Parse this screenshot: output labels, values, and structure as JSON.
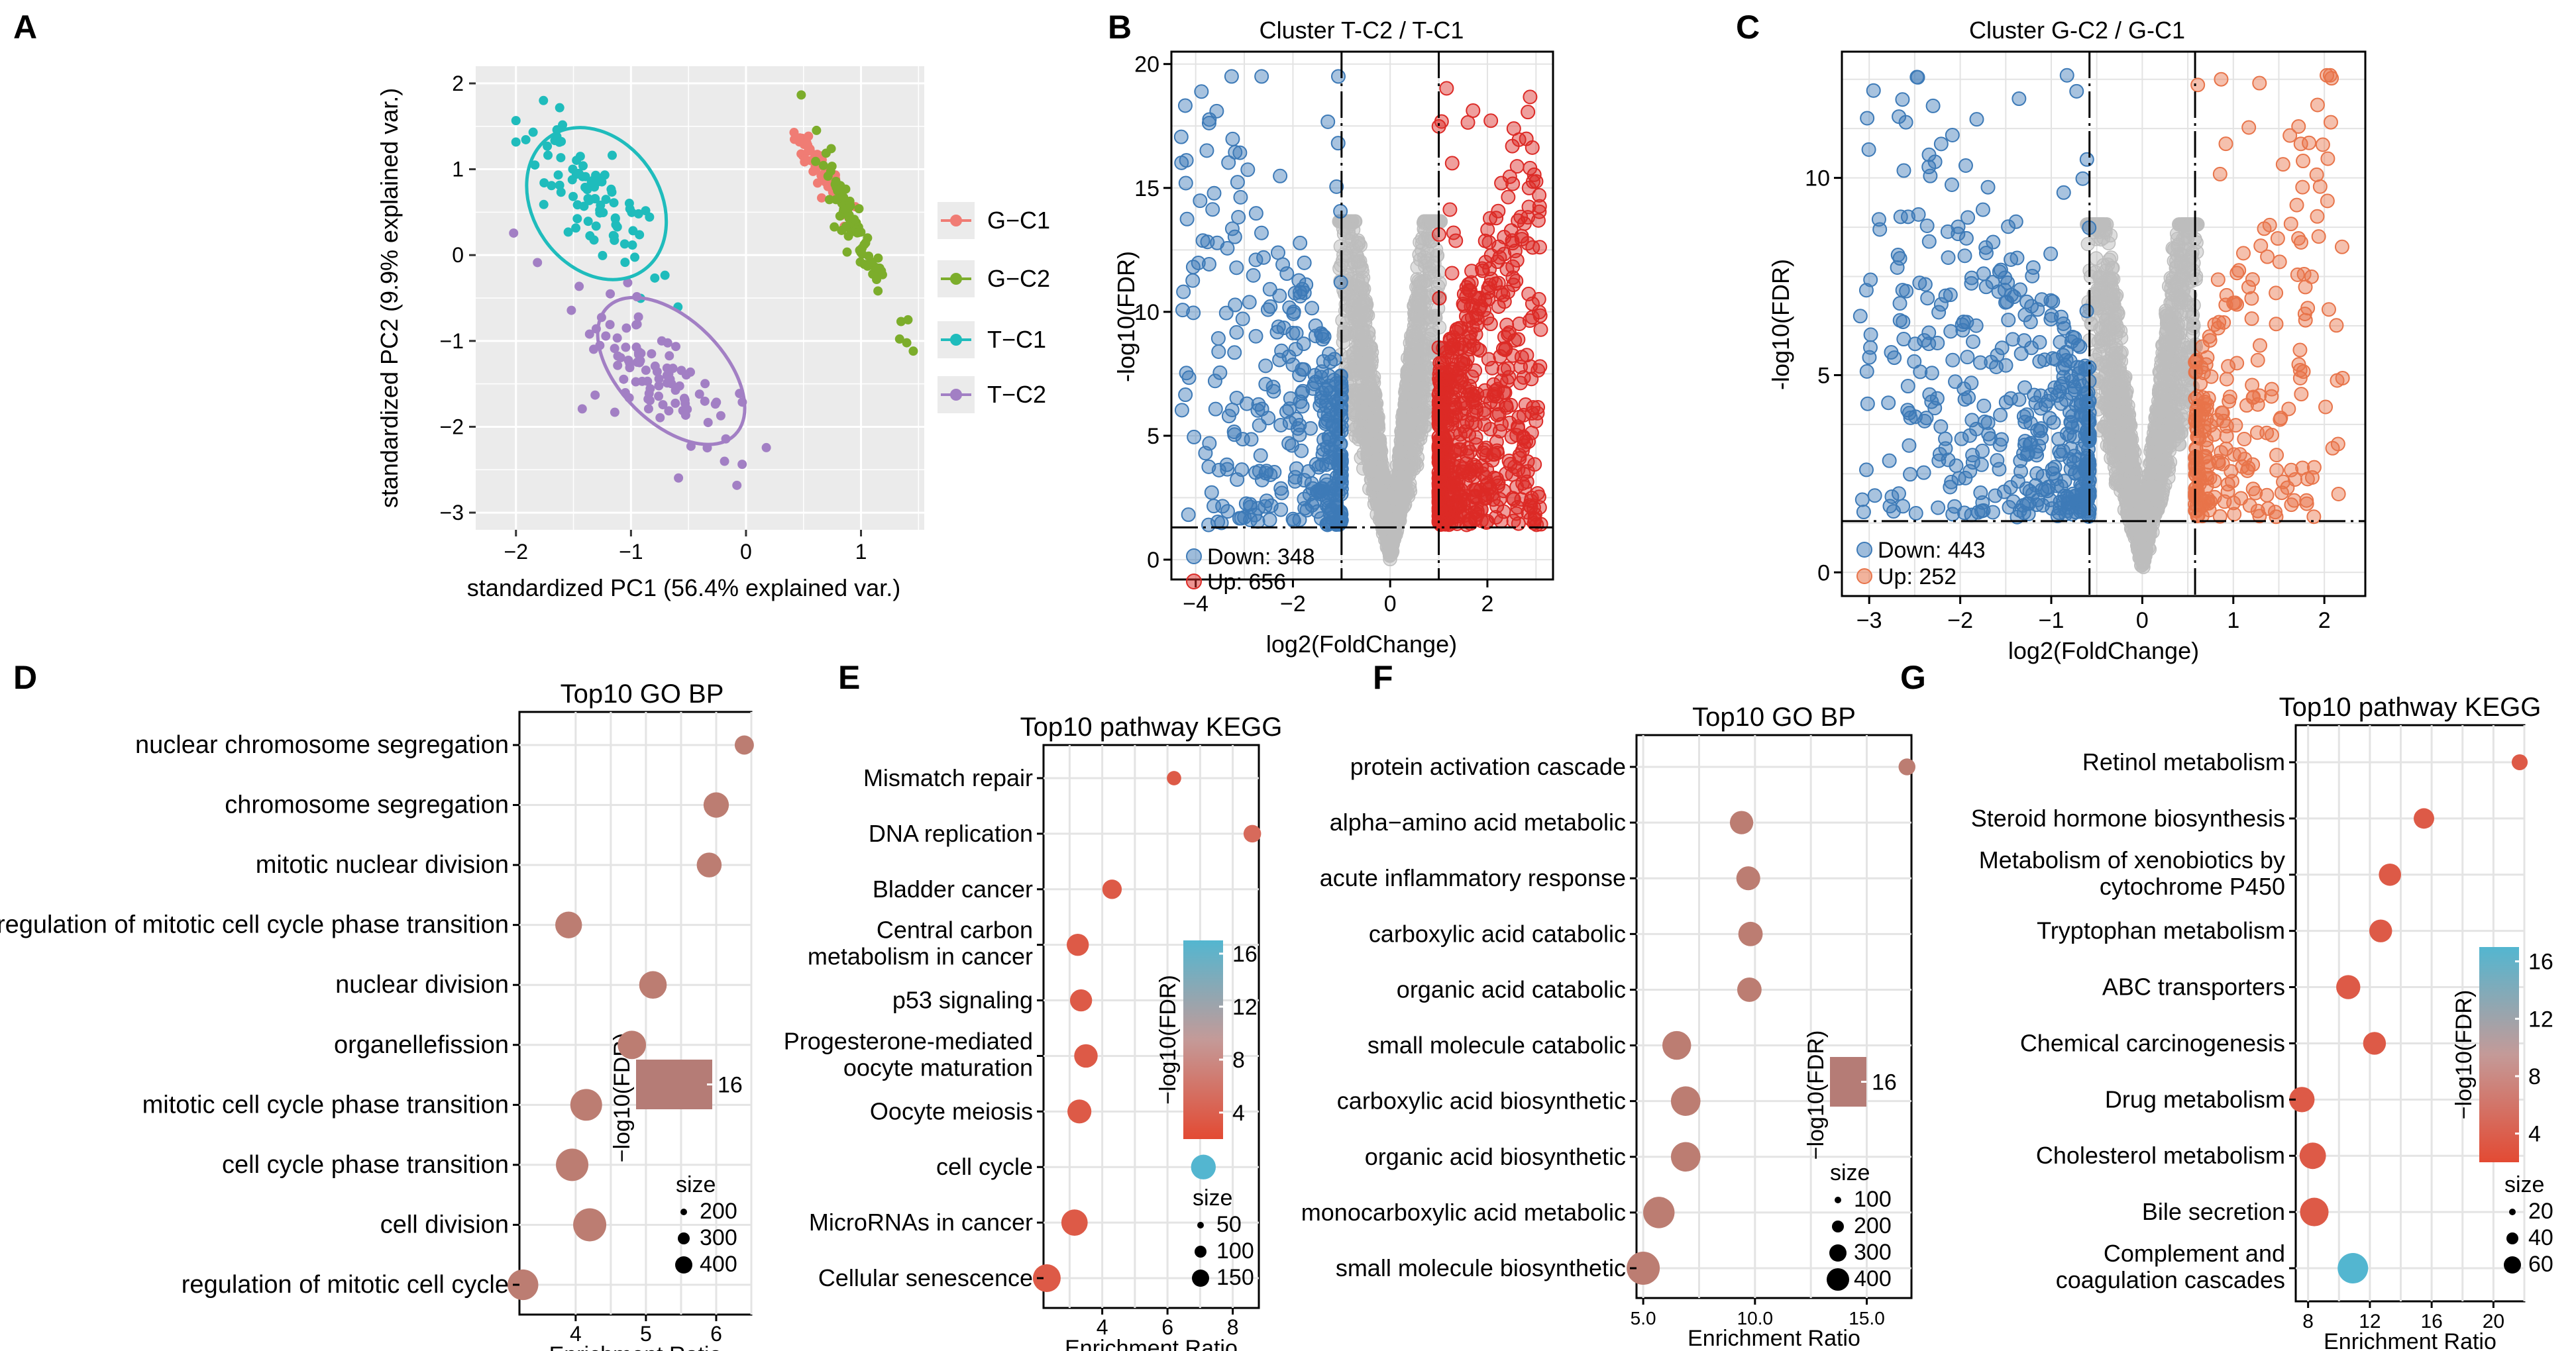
{
  "panel_letters": {
    "A": "A",
    "B": "B",
    "C": "C",
    "D": "D",
    "E": "E",
    "F": "F",
    "G": "G"
  },
  "colors": {
    "pca": {
      "G-C1": "#f07c74",
      "G-C2": "#7cad2b",
      "T-C1": "#1fbcbc",
      "T-C2": "#a27fc4"
    },
    "down": "#3d7ab7",
    "up": "#dc2a26",
    "ns": "#bdbdbd",
    "grad_low": "#e34a33",
    "grad_mid": "#c49a98",
    "grad_high": "#53b6d0"
  },
  "chart_data": [
    {
      "id": "A",
      "type": "scatter",
      "xlabel": "standardized PC1 (56.4% explained var.)",
      "ylabel": "standardized PC2 (9.9% explained var.)",
      "xlim": [
        -2.35,
        1.55
      ],
      "ylim": [
        -3.2,
        2.2
      ],
      "xticks": [
        -2,
        -1,
        0,
        1
      ],
      "yticks": [
        -3,
        -2,
        -1,
        0,
        1,
        2
      ],
      "legend": [
        {
          "label": "G−C1",
          "group": "G-C1"
        },
        {
          "label": "G−C2",
          "group": "G-C2"
        },
        {
          "label": "T−C1",
          "group": "T-C1"
        },
        {
          "label": "T−C2",
          "group": "T-C2"
        }
      ],
      "groups": [
        {
          "name": "G-C1",
          "center": [
            0.62,
            1.05
          ],
          "spread": [
            0.1,
            0.22
          ],
          "n": 45,
          "seed": 11
        },
        {
          "name": "G-C2",
          "center": [
            0.95,
            0.3
          ],
          "spread": [
            0.16,
            0.45
          ],
          "n": 85,
          "seed": 12
        },
        {
          "name": "T-C1",
          "center": [
            -1.35,
            0.7
          ],
          "spread": [
            0.35,
            0.5
          ],
          "n": 90,
          "seed": 13
        },
        {
          "name": "T-C2",
          "center": [
            -0.75,
            -1.4
          ],
          "spread": [
            0.42,
            0.55
          ],
          "n": 100,
          "seed": 14
        }
      ],
      "ellipses": [
        {
          "group": "T-C1",
          "cx": -1.3,
          "cy": 0.6,
          "rx": 0.55,
          "ry": 0.95,
          "angle": -35
        },
        {
          "group": "T-C2",
          "cx": -0.65,
          "cy": -1.35,
          "rx": 0.45,
          "ry": 1.05,
          "angle": -45
        }
      ]
    },
    {
      "id": "B",
      "type": "scatter",
      "title": "Cluster T-C2 / T-C1",
      "xlabel": "log2(FoldChange)",
      "ylabel": "-log10(FDR)",
      "xlim": [
        -4.5,
        3.35
      ],
      "ylim": [
        -0.8,
        20.5
      ],
      "xticks": [
        -4,
        -2,
        0,
        2
      ],
      "yticks": [
        0,
        5,
        10,
        15,
        20
      ],
      "fc_threshold": 1,
      "fdr_line": 1.3,
      "legend": [
        {
          "label": "Down: 348",
          "kind": "down"
        },
        {
          "label": "Up: 656",
          "kind": "up"
        }
      ],
      "counts": {
        "down": 348,
        "up": 656,
        "ns": 1800
      },
      "xmin": -4.3,
      "xmax": 3.1,
      "ymax": 19.5,
      "seed": 21
    },
    {
      "id": "C",
      "type": "scatter",
      "title": "Cluster G-C2 / G-C1",
      "xlabel": "log2(FoldChange)",
      "ylabel": "-log10(FDR)",
      "xlim": [
        -3.3,
        2.45
      ],
      "ylim": [
        -0.6,
        13.2
      ],
      "xticks": [
        -3,
        -2,
        -1,
        0,
        1,
        2
      ],
      "yticks": [
        0,
        5,
        10
      ],
      "fc_threshold": 0.58,
      "fdr_line": 1.3,
      "legend": [
        {
          "label": "Down: 443",
          "kind": "down"
        },
        {
          "label": "Up: 252",
          "kind": "up"
        }
      ],
      "counts": {
        "down": 443,
        "up": 252,
        "ns": 1800
      },
      "xmin": -3.1,
      "xmax": 2.2,
      "ymax": 12.6,
      "seed": 31
    },
    {
      "id": "D",
      "type": "scatter",
      "title": "Top10 GO BP",
      "xlabel": "Enrichment Ratio",
      "xlim": [
        3.2,
        6.5
      ],
      "xticks": [
        4,
        5,
        6
      ],
      "legend_title": "−log10(FDR)",
      "legend_value": "16",
      "size_title": "size",
      "size_values": [
        "200",
        "300",
        "400"
      ],
      "gradient": false,
      "terms": [
        {
          "label": "nuclear chromosome segregation",
          "x": 6.4,
          "size": 90,
          "c": 0.5
        },
        {
          "label": "chromosome segregation",
          "x": 6.0,
          "size": 200,
          "c": 0.5
        },
        {
          "label": "mitotic nuclear division",
          "x": 5.9,
          "size": 190,
          "c": 0.5
        },
        {
          "label": "regulation of mitotic cell cycle phase transition",
          "x": 3.9,
          "size": 230,
          "c": 0.5
        },
        {
          "label": "nuclear division",
          "x": 5.1,
          "size": 250,
          "c": 0.5
        },
        {
          "label": "organellefission",
          "x": 4.8,
          "size": 270,
          "c": 0.5
        },
        {
          "label": "mitotic cell cycle phase transition",
          "x": 4.15,
          "size": 360,
          "c": 0.5
        },
        {
          "label": "cell cycle phase transition",
          "x": 3.95,
          "size": 380,
          "c": 0.5
        },
        {
          "label": "cell division",
          "x": 4.2,
          "size": 400,
          "c": 0.5
        },
        {
          "label": "regulation of mitotic cell cycle",
          "x": 3.25,
          "size": 330,
          "c": 0.5
        }
      ]
    },
    {
      "id": "E",
      "type": "scatter",
      "title": "Top10 pathway KEGG",
      "xlabel": "Enrichment Ratio",
      "xlim": [
        2.2,
        8.8
      ],
      "xticks": [
        4,
        6,
        8
      ],
      "legend_title": "−log10(FDR)",
      "gradient_ticks": [
        "4",
        "8",
        "12",
        "16"
      ],
      "size_title": "size",
      "size_values": [
        "50",
        "100",
        "150"
      ],
      "gradient": true,
      "terms": [
        {
          "label": [
            "Mismatch repair"
          ],
          "x": 6.2,
          "size": 20,
          "c": 0.1
        },
        {
          "label": [
            "DNA replication"
          ],
          "x": 8.6,
          "size": 40,
          "c": 0.2
        },
        {
          "label": [
            "Bladder cancer"
          ],
          "x": 4.3,
          "size": 55,
          "c": 0.1
        },
        {
          "label": [
            "Central carbon",
            "metabolism in cancer"
          ],
          "x": 3.25,
          "size": 80,
          "c": 0.1
        },
        {
          "label": [
            "p53 signaling"
          ],
          "x": 3.35,
          "size": 80,
          "c": 0.1
        },
        {
          "label": [
            "Progesterone-mediated",
            "oocyte maturation"
          ],
          "x": 3.5,
          "size": 95,
          "c": 0.1
        },
        {
          "label": [
            "Oocyte meiosis"
          ],
          "x": 3.3,
          "size": 100,
          "c": 0.1
        },
        {
          "label": [
            "cell cycle"
          ],
          "x": 7.1,
          "size": 110,
          "c": 1.0
        },
        {
          "label": [
            "MicroRNAs in cancer"
          ],
          "x": 3.15,
          "size": 130,
          "c": 0.1
        },
        {
          "label": [
            "Cellular senescence"
          ],
          "x": 2.3,
          "size": 150,
          "c": 0.1
        }
      ]
    },
    {
      "id": "F",
      "type": "scatter",
      "title": "Top10 GO BP",
      "xlabel": "Enrichment Ratio",
      "xlim": [
        4.7,
        17.0
      ],
      "xticks": [
        "5.0",
        "10.0",
        "15.0"
      ],
      "xtick_vals": [
        5,
        10,
        15
      ],
      "legend_title": "−log10(FDR)",
      "legend_value": "16",
      "size_title": "size",
      "size_values": [
        "100",
        "200",
        "300",
        "400"
      ],
      "gradient": false,
      "terms": [
        {
          "label": "protein activation cascade",
          "x": 16.8,
          "size": 60,
          "c": 0.5
        },
        {
          "label": "alpha−amino acid metabolic",
          "x": 9.4,
          "size": 160,
          "c": 0.5
        },
        {
          "label": "acute inflammatory response",
          "x": 9.7,
          "size": 170,
          "c": 0.5
        },
        {
          "label": "carboxylic acid catabolic",
          "x": 9.8,
          "size": 180,
          "c": 0.5
        },
        {
          "label": "organic acid catabolic",
          "x": 9.75,
          "size": 180,
          "c": 0.5
        },
        {
          "label": "small molecule catabolic",
          "x": 6.5,
          "size": 280,
          "c": 0.5
        },
        {
          "label": "carboxylic acid biosynthetic",
          "x": 6.9,
          "size": 300,
          "c": 0.5
        },
        {
          "label": "organic acid biosynthetic",
          "x": 6.9,
          "size": 300,
          "c": 0.5
        },
        {
          "label": "monocarboxylic acid metabolic",
          "x": 5.7,
          "size": 350,
          "c": 0.5
        },
        {
          "label": "small molecule biosynthetic",
          "x": 5.0,
          "size": 400,
          "c": 0.5
        }
      ]
    },
    {
      "id": "G",
      "type": "scatter",
      "title": "Top10 pathway KEGG",
      "xlabel": "Enrichment Ratio",
      "xlim": [
        7.2,
        22.0
      ],
      "xticks": [
        8,
        12,
        16,
        20
      ],
      "legend_title": "−log10(FDR)",
      "gradient_ticks": [
        "4",
        "8",
        "12",
        "16"
      ],
      "size_title": "size",
      "size_values": [
        "20",
        "40",
        "60"
      ],
      "gradient": true,
      "terms": [
        {
          "label": [
            "Retinol metabolism"
          ],
          "x": 21.7,
          "size": 10,
          "c": 0.1
        },
        {
          "label": [
            "Steroid hormone biosynthesis"
          ],
          "x": 15.5,
          "size": 22,
          "c": 0.1
        },
        {
          "label": [
            "Metabolism of xenobiotics by",
            "cytochrome P450"
          ],
          "x": 13.3,
          "size": 28,
          "c": 0.1
        },
        {
          "label": [
            "Tryptophan metabolism"
          ],
          "x": 12.7,
          "size": 30,
          "c": 0.1
        },
        {
          "label": [
            "ABC transporters"
          ],
          "x": 10.6,
          "size": 35,
          "c": 0.1
        },
        {
          "label": [
            "Chemical carcinogenesis"
          ],
          "x": 12.3,
          "size": 30,
          "c": 0.1
        },
        {
          "label": [
            "Drug metabolism"
          ],
          "x": 7.6,
          "size": 40,
          "c": 0.1
        },
        {
          "label": [
            "Cholesterol metabolism"
          ],
          "x": 8.3,
          "size": 45,
          "c": 0.1
        },
        {
          "label": [
            "Bile secretion"
          ],
          "x": 8.4,
          "size": 55,
          "c": 0.1
        },
        {
          "label": [
            "Complement and",
            "coagulation cascades"
          ],
          "x": 10.9,
          "size": 65,
          "c": 1.0
        }
      ]
    }
  ]
}
